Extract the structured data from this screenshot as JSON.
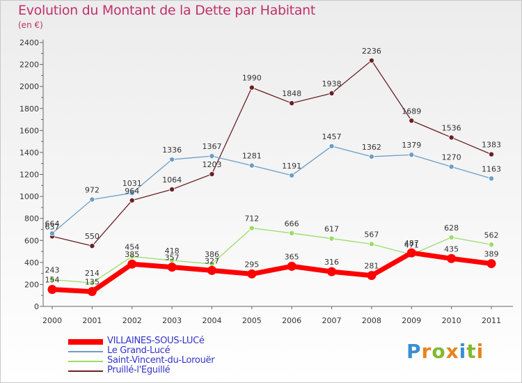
{
  "title": "Evolution du Montant de la Dette par Habitant",
  "subtitle": "(en €)",
  "logo": {
    "text": "Proxiti",
    "letter_colors": [
      "#3a8fd1",
      "#e8831e",
      "#7fba2f",
      "#e8831e",
      "#3a8fd1",
      "#7fba2f",
      "#e8831e"
    ]
  },
  "chart_data": {
    "type": "line",
    "title": "Evolution du Montant de la Dette par Habitant",
    "subtitle": "(en €)",
    "xlabel": "",
    "ylabel": "",
    "x": [
      "2000",
      "2001",
      "2002",
      "2003",
      "2004",
      "2005",
      "2006",
      "2007",
      "2008",
      "2009",
      "2010",
      "2011"
    ],
    "ylim": [
      0,
      2400
    ],
    "yticks": [
      0,
      200,
      400,
      600,
      800,
      1000,
      1200,
      1400,
      1600,
      1800,
      2000,
      2200,
      2400
    ],
    "grid": false,
    "legend": "bottom-left",
    "series": [
      {
        "name": "VILLAINES-SOUS-LUCé",
        "color": "#ff0000",
        "values": [
          154,
          135,
          385,
          357,
          327,
          295,
          365,
          316,
          281,
          487,
          435,
          389
        ]
      },
      {
        "name": "Le Grand-Lucé",
        "color": "#6a9ec9",
        "values": [
          664,
          972,
          1031,
          1336,
          1367,
          1281,
          1191,
          1457,
          1362,
          1379,
          1270,
          1163
        ]
      },
      {
        "name": "Saint-Vincent-du-Lorouër",
        "color": "#99dd66",
        "values": [
          243,
          214,
          454,
          418,
          386,
          712,
          666,
          617,
          567,
          471,
          628,
          562
        ]
      },
      {
        "name": "Pruillé-l'Eguillé",
        "color": "#6b1f28",
        "values": [
          637,
          550,
          964,
          1064,
          1203,
          1990,
          1848,
          1938,
          2236,
          1689,
          1536,
          1383
        ]
      }
    ]
  }
}
